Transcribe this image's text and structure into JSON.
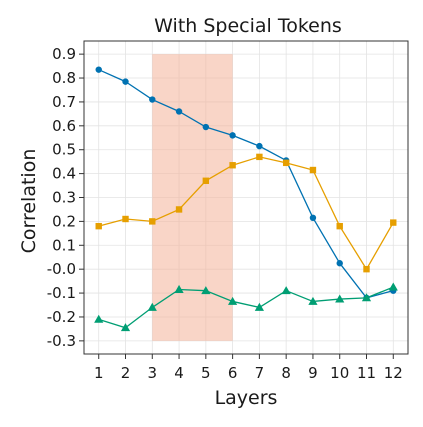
{
  "chart_data": {
    "type": "line",
    "title": "With Special Tokens",
    "xlabel": "Layers",
    "ylabel": "Correlation",
    "x": [
      1,
      2,
      3,
      4,
      5,
      6,
      7,
      8,
      9,
      10,
      11,
      12
    ],
    "x_tick_labels": [
      "1",
      "2",
      "3",
      "4",
      "5",
      "6",
      "7",
      "8",
      "9",
      "10",
      "11",
      "12"
    ],
    "xlim": [
      0.45,
      12.55
    ],
    "ylim": [
      -0.355,
      0.955
    ],
    "y_ticks": [
      0.9,
      0.8,
      0.7,
      0.6,
      0.5,
      0.4,
      0.3,
      0.2,
      0.1,
      0.0,
      -0.1,
      -0.2,
      -0.3
    ],
    "y_tick_labels": [
      "0.9",
      "0.8",
      "0.7",
      "0.6",
      "0.5",
      "0.4",
      "0.3",
      "0.2",
      "0.1",
      "-0.0",
      "-0.1",
      "-0.2",
      "-0.3"
    ],
    "grid": true,
    "highlight_band": {
      "x_start": 3,
      "x_end": 6,
      "y_start": -0.3,
      "y_end": 0.9,
      "color": "#f4b399"
    },
    "series": [
      {
        "marker": "circle",
        "color": "#0072b2",
        "values": [
          0.835,
          0.785,
          0.71,
          0.66,
          0.595,
          0.56,
          0.515,
          0.455,
          0.215,
          0.025,
          -0.12,
          -0.09
        ]
      },
      {
        "marker": "square",
        "color": "#e69f00",
        "values": [
          0.18,
          0.21,
          0.2,
          0.25,
          0.37,
          0.435,
          0.47,
          0.445,
          0.415,
          0.18,
          0.0,
          0.195
        ]
      },
      {
        "marker": "triangle",
        "color": "#009e73",
        "values": [
          -0.21,
          -0.245,
          -0.16,
          -0.085,
          -0.09,
          -0.135,
          -0.16,
          -0.09,
          -0.135,
          -0.125,
          -0.12,
          -0.075
        ]
      }
    ]
  }
}
